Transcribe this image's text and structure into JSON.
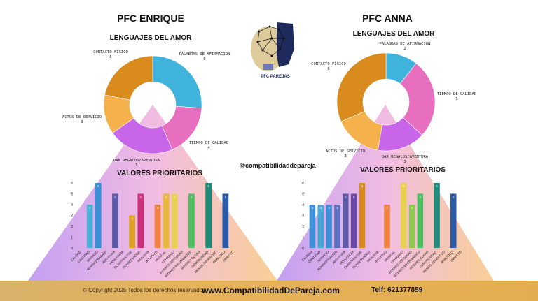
{
  "brand": {
    "logo_text": "PFC PAREJAS",
    "handle": "@compatibilidaddepareja"
  },
  "footer": {
    "copyright": "© Copyright 2025 Todos los derechos reservados.",
    "website": "www.CompatibilidadDePareja.com",
    "phone": "Telf: 621377859"
  },
  "chart_data": [
    {
      "type": "pie",
      "title": "PFC ENRIQUE",
      "subtitle": "LENGUAJES DEL AMOR",
      "slices": [
        {
          "label": "PALABRAS DE AFIRMACIÓN",
          "value": 6,
          "color": "#3fb3dc"
        },
        {
          "label": "TIEMPO DE CALIDAD",
          "value": 4,
          "color": "#e86fbf"
        },
        {
          "label": "DAR REGALOS/AVENTURA",
          "value": 5,
          "color": "#c865e8"
        },
        {
          "label": "ACTOS DE SERVICIO",
          "value": 3,
          "color": "#f5b24c"
        },
        {
          "label": "CONTACTO FÍSICO",
          "value": 5,
          "color": "#d98b1e"
        }
      ]
    },
    {
      "type": "pie",
      "title": "PFC ANNA",
      "subtitle": "LENGUAJES DEL AMOR",
      "slices": [
        {
          "label": "PALABRAS DE AFIRMACIÓN",
          "value": 2,
          "color": "#3fb3dc"
        },
        {
          "label": "TIEMPO DE CALIDAD",
          "value": 5,
          "color": "#e86fbf"
        },
        {
          "label": "DAR REGALOS/AVENTURA",
          "value": 3,
          "color": "#c865e8"
        },
        {
          "label": "ACTOS DE SERVICIO",
          "value": 3,
          "color": "#f5b24c"
        },
        {
          "label": "CONTACTO FÍSICO",
          "value": 6,
          "color": "#d98b1e"
        }
      ]
    },
    {
      "type": "bar",
      "title": "VALORES PRIORITARIOS",
      "categories": [
        "CALIDAD",
        "CANTIDAD",
        "SERVICIO",
        "ADMINISTRACIÓN",
        "AVENTURA",
        "PRUDENCIA",
        "CONSTRUCTOR",
        "CONSERVADOR",
        "REALISTA",
        "INTUITIVO",
        "MUSICAL",
        "LITERARIO",
        "INTERES PERSONAS",
        "INTERES INFORMACIÓN",
        "INTERES COSAS",
        "GENEROSIDAD",
        "MENOS GENEROSO",
        "ANALITICO",
        "DIRECTO"
      ],
      "values": [
        0,
        4,
        6,
        0,
        5,
        0,
        3,
        5,
        0,
        4,
        5,
        5,
        0,
        5,
        0,
        6,
        0,
        5,
        0
      ],
      "colors": [
        "#3d8fd6",
        "#4ab0d8",
        "#3b8fd6",
        "#5a6ec0",
        "#5a5aa8",
        "#7a55b0",
        "#e0a020",
        "#d0307a",
        "#f0a040",
        "#f08040",
        "#e8b83a",
        "#e8d050",
        "#8ec850",
        "#4cc060",
        "#2e9a70",
        "#1f8a7a",
        "#2c8a9a",
        "#2a5aa8",
        "#203e9a"
      ],
      "ylim": [
        0,
        6
      ],
      "yticks": [
        0,
        1,
        2,
        3,
        4,
        5,
        6
      ]
    },
    {
      "type": "bar",
      "title": "VALORES PRIORITARIOS",
      "categories": [
        "CALIDAD",
        "CANTIDAD",
        "SERVICIO",
        "ADMINISTRACIÓN",
        "AVENTURA",
        "PRUDENCIA",
        "CONSTRUCTOR",
        "CONSERVADOR",
        "REALISTA",
        "INTUITIVO",
        "MUSICAL",
        "LITERARIO",
        "INTERES PERSONAS",
        "INTERES INFORMACIÓN",
        "INTERES COSAS",
        "GENEROSIDAD",
        "MENOS GENEROSO",
        "ANALITICO",
        "DIRECTO"
      ],
      "values": [
        4,
        4,
        4,
        4,
        5,
        5,
        6,
        0,
        0,
        4,
        0,
        6,
        4,
        5,
        0,
        6,
        0,
        5,
        0
      ],
      "colors": [
        "#3d8fd6",
        "#4aa8d8",
        "#3b8fd6",
        "#5a6ec0",
        "#5a5aa8",
        "#6a4aa8",
        "#d98b1e",
        "#d0307a",
        "#f0a040",
        "#f08040",
        "#e8b83a",
        "#e8d050",
        "#8ec850",
        "#4cc060",
        "#2e9a70",
        "#1f8a7a",
        "#2c8a9a",
        "#2a5aa8",
        "#203e9a"
      ],
      "ylim": [
        0,
        6
      ],
      "yticks": [
        0,
        1,
        2,
        3,
        4,
        5,
        6
      ]
    }
  ]
}
